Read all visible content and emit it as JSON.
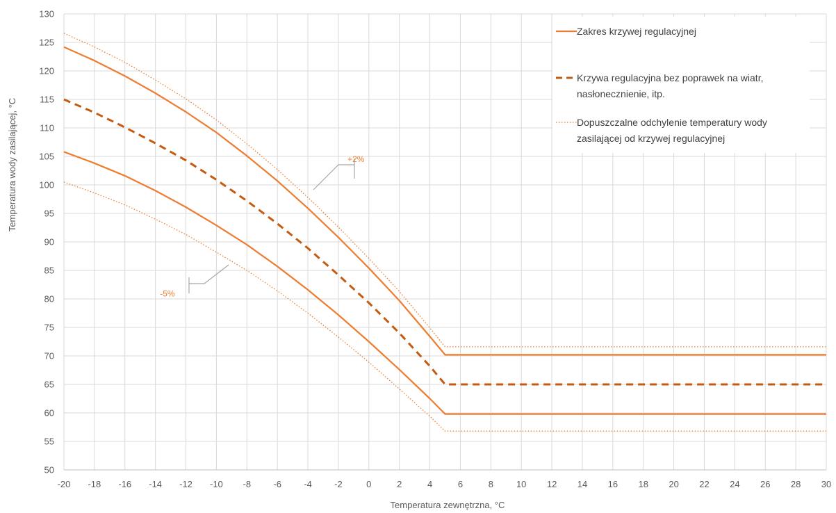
{
  "chart_data": {
    "type": "line",
    "title": "",
    "xlabel": "Temperatura zewnętrzna, °C",
    "ylabel": "Temperatura wody zasilającej, °C",
    "xlim": [
      -20,
      30
    ],
    "ylim": [
      50,
      130
    ],
    "x_ticks": [
      "-20",
      "-18",
      "-16",
      "-14",
      "-12",
      "-10",
      "-8",
      "-6",
      "-4",
      "-2",
      "0",
      "2",
      "4",
      "6",
      "8",
      "10",
      "12",
      "14",
      "16",
      "18",
      "20",
      "22",
      "24",
      "26",
      "28",
      "30"
    ],
    "y_ticks": [
      "50",
      "55",
      "60",
      "65",
      "70",
      "75",
      "80",
      "85",
      "90",
      "95",
      "100",
      "105",
      "110",
      "115",
      "120",
      "125",
      "130"
    ],
    "grid": true,
    "legend_position": "top-right",
    "legend": [
      {
        "label_lines": [
          "Zakres krzywej regulacyjnej"
        ],
        "style": "solid"
      },
      {
        "label_lines": [
          "Krzywa regulacyjna bez poprawek na wiatr,",
          "nasłonecznienie, itp."
        ],
        "style": "dashed"
      },
      {
        "label_lines": [
          "Dopuszczalne odchylenie temperatury wody",
          "zasilającej od krzywej regulacyjnej"
        ],
        "style": "dotted"
      }
    ],
    "annotations": [
      {
        "text": "+2%",
        "x": -1.4,
        "y": 104
      },
      {
        "text": "-5%",
        "x": -13.7,
        "y": 80.4
      }
    ],
    "colors": {
      "line": "#ED7D31",
      "dashed": "#C55A11",
      "grid": "#D9D9D9",
      "axis": "#BFBFBF",
      "text": "#595959",
      "annotation_leader": "#A6A6A6"
    },
    "series": [
      {
        "name": "Zakres krzywej regulacyjnej (górna)",
        "style": "solid",
        "x": [
          -20,
          -18,
          -16,
          -14,
          -12,
          -10,
          -8,
          -6,
          -4,
          -2,
          0,
          2,
          4,
          5,
          30
        ],
        "y": [
          124.2,
          121.8,
          119.1,
          116.1,
          112.8,
          109.2,
          105.1,
          100.7,
          95.9,
          90.8,
          85.4,
          79.7,
          73.4,
          70.2,
          70.2
        ]
      },
      {
        "name": "Zakres krzywej regulacyjnej (dolna)",
        "style": "solid",
        "x": [
          -20,
          -18,
          -16,
          -14,
          -12,
          -10,
          -8,
          -6,
          -4,
          -2,
          0,
          2,
          4,
          5,
          30
        ],
        "y": [
          105.8,
          103.8,
          101.6,
          99.0,
          96.1,
          92.9,
          89.5,
          85.7,
          81.6,
          77.2,
          72.5,
          67.6,
          62.5,
          59.8,
          59.8
        ]
      },
      {
        "name": "Krzywa regulacyjna bez poprawek na wiatr, nasłonecznienie, itp.",
        "style": "dashed",
        "x": [
          -20,
          -18,
          -16,
          -14,
          -12,
          -10,
          -8,
          -6,
          -4,
          -2,
          0,
          2,
          4,
          5,
          30
        ],
        "y": [
          115.0,
          112.7,
          110.1,
          107.3,
          104.3,
          100.9,
          97.2,
          93.2,
          88.9,
          84.2,
          79.3,
          74.0,
          68.2,
          65.0,
          65.0
        ]
      },
      {
        "name": "Dopuszczalne odchylenie temperatury wody zasilającej od krzywej regulacyjnej (górne)",
        "style": "dotted",
        "x": [
          -20,
          -18,
          -16,
          -14,
          -12,
          -10,
          -8,
          -6,
          -4,
          -2,
          0,
          2,
          4,
          5,
          30
        ],
        "y": [
          126.6,
          124.2,
          121.5,
          118.4,
          115.1,
          111.4,
          107.2,
          102.7,
          97.8,
          92.6,
          87.1,
          81.3,
          74.9,
          71.6,
          71.6
        ]
      },
      {
        "name": "Dopuszczalne odchylenie temperatury wody zasilającej od krzywej regulacyjnej (dolne)",
        "style": "dotted",
        "x": [
          -20,
          -18,
          -16,
          -14,
          -12,
          -10,
          -8,
          -6,
          -4,
          -2,
          0,
          2,
          4,
          5,
          30
        ],
        "y": [
          100.5,
          98.6,
          96.5,
          94.0,
          91.3,
          88.2,
          85.0,
          81.4,
          77.5,
          73.3,
          68.9,
          64.2,
          59.4,
          56.8,
          56.8
        ]
      }
    ]
  }
}
